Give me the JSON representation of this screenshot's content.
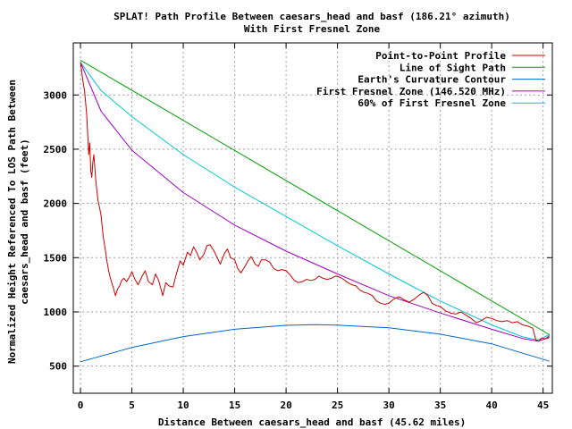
{
  "chart_data": {
    "type": "line",
    "title": "SPLAT! Path Profile Between caesars_head and basf (186.21° azimuth)",
    "subtitle": "With First Fresnel Zone",
    "xlabel": "Distance Between caesars_head and basf (45.62 miles)",
    "ylabel_line1": "Normalized Height Referenced To LOS Path Between",
    "ylabel_line2": "caesars_head and basf (feet)",
    "xlim": [
      -0.7,
      45.9
    ],
    "ylim": [
      250,
      3480
    ],
    "x_ticks": [
      0,
      5,
      10,
      15,
      20,
      25,
      30,
      35,
      40,
      45
    ],
    "y_ticks": [
      500,
      1000,
      1500,
      2000,
      2500,
      3000
    ],
    "grid": true,
    "legend_position": "top-right",
    "series": [
      {
        "name": "Point-to-Point Profile",
        "color": "#cc0000",
        "points": [
          [
            0,
            3300
          ],
          [
            0.2,
            3150
          ],
          [
            0.4,
            3030
          ],
          [
            0.6,
            2820
          ],
          [
            0.8,
            2450
          ],
          [
            0.9,
            2560
          ],
          [
            1.0,
            2300
          ],
          [
            1.1,
            2240
          ],
          [
            1.2,
            2380
          ],
          [
            1.3,
            2450
          ],
          [
            1.5,
            2200
          ],
          [
            1.7,
            2030
          ],
          [
            1.9,
            1940
          ],
          [
            2.0,
            1890
          ],
          [
            2.2,
            1700
          ],
          [
            2.4,
            1580
          ],
          [
            2.6,
            1450
          ],
          [
            2.8,
            1350
          ],
          [
            3.0,
            1280
          ],
          [
            3.2,
            1220
          ],
          [
            3.4,
            1150
          ],
          [
            3.6,
            1210
          ],
          [
            3.8,
            1240
          ],
          [
            4.0,
            1290
          ],
          [
            4.2,
            1310
          ],
          [
            4.5,
            1280
          ],
          [
            4.8,
            1330
          ],
          [
            5.0,
            1370
          ],
          [
            5.3,
            1300
          ],
          [
            5.6,
            1250
          ],
          [
            6.0,
            1330
          ],
          [
            6.3,
            1380
          ],
          [
            6.6,
            1280
          ],
          [
            7.0,
            1250
          ],
          [
            7.3,
            1350
          ],
          [
            7.6,
            1290
          ],
          [
            8.0,
            1150
          ],
          [
            8.3,
            1270
          ],
          [
            8.6,
            1240
          ],
          [
            9.0,
            1230
          ],
          [
            9.3,
            1340
          ],
          [
            9.7,
            1470
          ],
          [
            10.0,
            1430
          ],
          [
            10.4,
            1550
          ],
          [
            10.7,
            1520
          ],
          [
            11.0,
            1600
          ],
          [
            11.3,
            1550
          ],
          [
            11.6,
            1480
          ],
          [
            12.0,
            1530
          ],
          [
            12.3,
            1610
          ],
          [
            12.6,
            1620
          ],
          [
            13.0,
            1560
          ],
          [
            13.3,
            1500
          ],
          [
            13.6,
            1440
          ],
          [
            14.0,
            1540
          ],
          [
            14.3,
            1580
          ],
          [
            14.6,
            1500
          ],
          [
            15.0,
            1480
          ],
          [
            15.3,
            1400
          ],
          [
            15.6,
            1360
          ],
          [
            16.0,
            1420
          ],
          [
            16.3,
            1470
          ],
          [
            16.6,
            1510
          ],
          [
            17.0,
            1440
          ],
          [
            17.3,
            1420
          ],
          [
            17.6,
            1480
          ],
          [
            18.0,
            1480
          ],
          [
            18.4,
            1460
          ],
          [
            18.8,
            1400
          ],
          [
            19.2,
            1380
          ],
          [
            19.6,
            1390
          ],
          [
            20.0,
            1380
          ],
          [
            20.4,
            1340
          ],
          [
            20.8,
            1290
          ],
          [
            21.2,
            1270
          ],
          [
            21.6,
            1280
          ],
          [
            22.0,
            1300
          ],
          [
            22.4,
            1290
          ],
          [
            22.8,
            1300
          ],
          [
            23.2,
            1330
          ],
          [
            23.6,
            1310
          ],
          [
            24.0,
            1300
          ],
          [
            24.4,
            1310
          ],
          [
            24.8,
            1330
          ],
          [
            25.2,
            1320
          ],
          [
            25.6,
            1300
          ],
          [
            26.0,
            1270
          ],
          [
            26.4,
            1250
          ],
          [
            26.8,
            1240
          ],
          [
            27.2,
            1200
          ],
          [
            27.6,
            1180
          ],
          [
            28.0,
            1170
          ],
          [
            28.4,
            1150
          ],
          [
            28.8,
            1100
          ],
          [
            29.2,
            1080
          ],
          [
            29.6,
            1070
          ],
          [
            30.0,
            1080
          ],
          [
            30.5,
            1120
          ],
          [
            31.0,
            1140
          ],
          [
            31.5,
            1110
          ],
          [
            32.0,
            1090
          ],
          [
            32.5,
            1120
          ],
          [
            33.0,
            1160
          ],
          [
            33.4,
            1180
          ],
          [
            33.8,
            1150
          ],
          [
            34.2,
            1080
          ],
          [
            34.6,
            1060
          ],
          [
            35.0,
            1050
          ],
          [
            35.5,
            1010
          ],
          [
            36.0,
            990
          ],
          [
            36.5,
            980
          ],
          [
            37.0,
            1000
          ],
          [
            37.5,
            970
          ],
          [
            38.0,
            940
          ],
          [
            38.5,
            900
          ],
          [
            39.0,
            920
          ],
          [
            39.5,
            950
          ],
          [
            40.0,
            940
          ],
          [
            40.5,
            920
          ],
          [
            41.0,
            910
          ],
          [
            41.5,
            920
          ],
          [
            42.0,
            900
          ],
          [
            42.5,
            910
          ],
          [
            43.0,
            880
          ],
          [
            43.5,
            870
          ],
          [
            44.0,
            850
          ],
          [
            44.3,
            740
          ],
          [
            44.6,
            730
          ],
          [
            44.9,
            760
          ],
          [
            45.2,
            750
          ],
          [
            45.62,
            765
          ]
        ]
      },
      {
        "name": "Line of Sight Path",
        "color": "#00a000",
        "points": [
          [
            0,
            3320
          ],
          [
            45.62,
            790
          ]
        ]
      },
      {
        "name": "Earth's Curvature Contour",
        "color": "#0066cc",
        "points": [
          [
            0,
            540
          ],
          [
            5,
            672
          ],
          [
            10,
            772
          ],
          [
            15,
            840
          ],
          [
            20,
            876
          ],
          [
            22.81,
            882
          ],
          [
            25,
            878
          ],
          [
            30,
            853
          ],
          [
            35,
            795
          ],
          [
            40,
            706
          ],
          [
            45.62,
            545
          ]
        ]
      },
      {
        "name": "First Fresnel Zone (146.520 MHz)",
        "color": "#a000c0",
        "points": [
          [
            0,
            3300
          ],
          [
            2,
            2850
          ],
          [
            5,
            2490
          ],
          [
            10,
            2100
          ],
          [
            15,
            1800
          ],
          [
            20,
            1560
          ],
          [
            25,
            1350
          ],
          [
            30,
            1150
          ],
          [
            35,
            990
          ],
          [
            40,
            840
          ],
          [
            43,
            755
          ],
          [
            44.5,
            730
          ],
          [
            45.2,
            750
          ],
          [
            45.62,
            780
          ]
        ]
      },
      {
        "name": "60% of First Fresnel Zone",
        "color": "#00c8d2",
        "points": [
          [
            0,
            3300
          ],
          [
            2,
            3040
          ],
          [
            5,
            2800
          ],
          [
            10,
            2450
          ],
          [
            15,
            2150
          ],
          [
            20,
            1880
          ],
          [
            25,
            1610
          ],
          [
            30,
            1350
          ],
          [
            35,
            1100
          ],
          [
            40,
            880
          ],
          [
            43,
            770
          ],
          [
            44.5,
            740
          ],
          [
            45.62,
            790
          ]
        ]
      }
    ]
  }
}
